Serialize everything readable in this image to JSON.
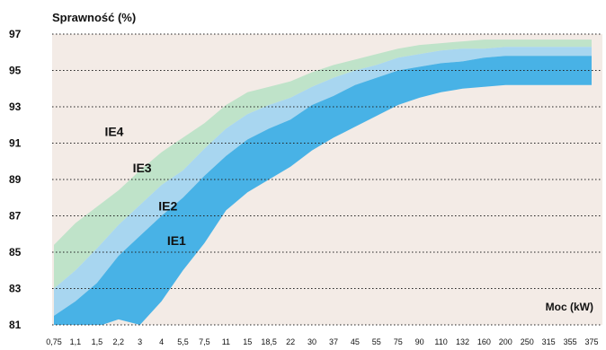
{
  "chart_data": {
    "type": "area",
    "ylabel": "Sprawność (%)",
    "xlabel": "Moc (kW)",
    "ylim": [
      81,
      97
    ],
    "y_ticks": [
      97,
      95,
      93,
      91,
      89,
      87,
      85,
      83,
      81
    ],
    "x": [
      "0,75",
      "1,1",
      "1,5",
      "2,2",
      "3",
      "4",
      "5,5",
      "7,5",
      "11",
      "15",
      "18,5",
      "22",
      "30",
      "37",
      "45",
      "55",
      "75",
      "90",
      "110",
      "132",
      "160",
      "200",
      "250",
      "315",
      "355",
      "375"
    ],
    "grid": "horizontal dotted",
    "background_color": "#f3ebe6",
    "series": [
      {
        "name": "IE4",
        "color": "#bfe3c9",
        "lower": [
          83.0,
          84.0,
          85.2,
          86.5,
          87.6,
          88.7,
          89.5,
          90.7,
          91.8,
          92.6,
          93.1,
          93.5,
          94.1,
          94.6,
          95.0,
          95.3,
          95.7,
          95.9,
          96.1,
          96.2,
          96.2,
          96.3,
          96.3,
          96.3,
          96.3,
          96.3
        ],
        "upper": [
          85.4,
          86.6,
          87.5,
          88.4,
          89.5,
          90.5,
          91.3,
          92.1,
          93.1,
          93.8,
          94.1,
          94.4,
          94.9,
          95.3,
          95.6,
          95.9,
          96.2,
          96.4,
          96.5,
          96.6,
          96.7,
          96.7,
          96.7,
          96.7,
          96.7,
          96.7
        ]
      },
      {
        "name": "IE3",
        "color": "#a8d6f0",
        "lower": [
          81.5,
          82.3,
          83.3,
          84.8,
          85.9,
          87.0,
          88.0,
          89.2,
          90.3,
          91.2,
          91.8,
          92.3,
          93.1,
          93.6,
          94.2,
          94.6,
          95.0,
          95.2,
          95.4,
          95.5,
          95.7,
          95.8,
          95.8,
          95.8,
          95.8,
          95.8
        ],
        "upper": [
          83.0,
          84.0,
          85.2,
          86.5,
          87.6,
          88.7,
          89.5,
          90.7,
          91.8,
          92.6,
          93.1,
          93.5,
          94.1,
          94.6,
          95.0,
          95.3,
          95.7,
          95.9,
          96.1,
          96.2,
          96.2,
          96.3,
          96.3,
          96.3,
          96.3,
          96.3
        ]
      },
      {
        "name": "IE2",
        "color": "#48b2e6",
        "lower": [
          80.5,
          80.7,
          80.9,
          81.3,
          81.0,
          82.3,
          84.0,
          85.5,
          87.3,
          88.3,
          89.0,
          89.7,
          90.6,
          91.3,
          91.9,
          92.5,
          93.1,
          93.5,
          93.8,
          94.0,
          94.1,
          94.2,
          94.2,
          94.2,
          94.2,
          94.2
        ],
        "upper": [
          81.5,
          82.3,
          83.3,
          84.8,
          85.9,
          87.0,
          88.0,
          89.2,
          90.3,
          91.2,
          91.8,
          92.3,
          93.1,
          93.6,
          94.2,
          94.6,
          95.0,
          95.2,
          95.4,
          95.5,
          95.7,
          95.8,
          95.8,
          95.8,
          95.8,
          95.8
        ]
      }
    ],
    "band_labels": [
      {
        "text": "IE4",
        "x": 2.8,
        "y": 91.4
      },
      {
        "text": "IE3",
        "x": 4.1,
        "y": 89.4
      },
      {
        "text": "IE2",
        "x": 5.3,
        "y": 87.3
      },
      {
        "text": "IE1",
        "x": 5.7,
        "y": 85.4
      }
    ]
  }
}
